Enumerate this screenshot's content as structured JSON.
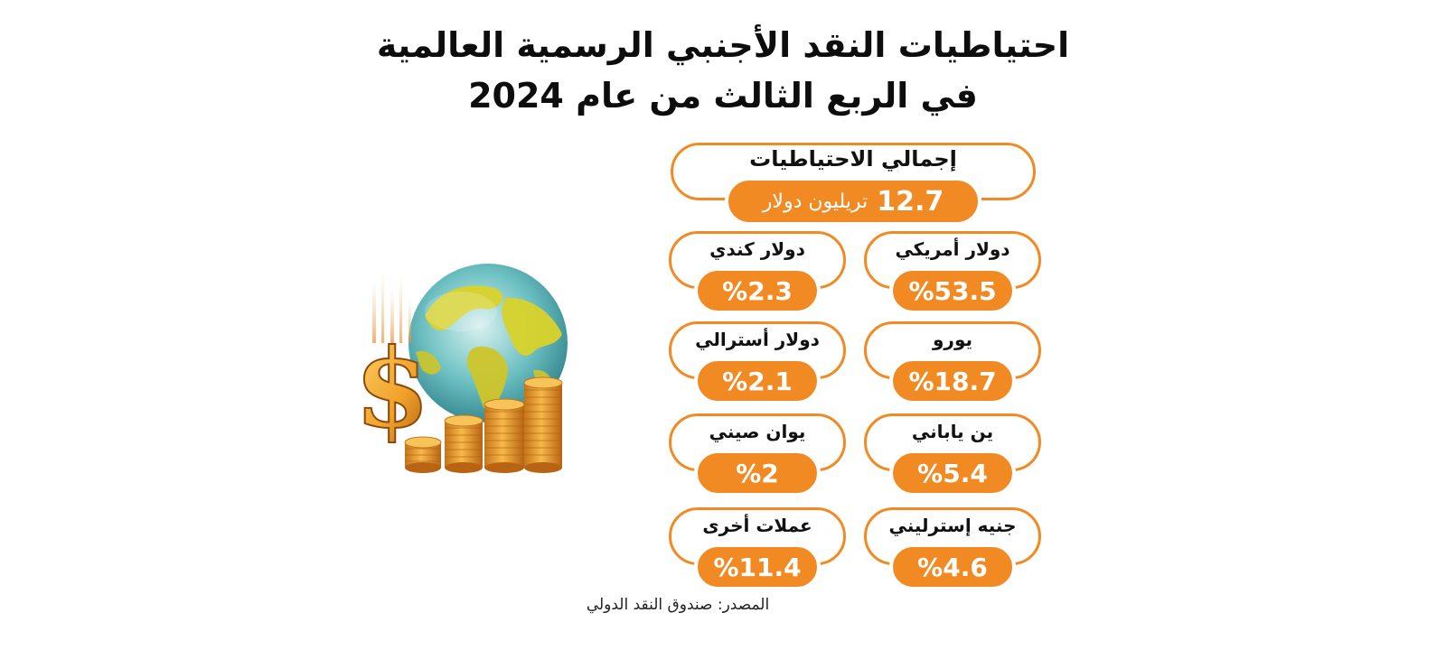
{
  "title": {
    "line1": "احتياطيات النقد الأجنبي الرسمية العالمية",
    "line2": "في الربع الثالث من عام 2024"
  },
  "total": {
    "label": "إجمالي الاحتياطيات",
    "value": "12.7",
    "unit": "تريليون دولار"
  },
  "currencies": [
    {
      "name": "دولار أمريكي",
      "share": "%53.5"
    },
    {
      "name": "دولار كندي",
      "share": "%2.3"
    },
    {
      "name": "يورو",
      "share": "%18.7"
    },
    {
      "name": "دولار أسترالي",
      "share": "%2.1"
    },
    {
      "name": "ين ياباني",
      "share": "%5.4"
    },
    {
      "name": "يوان صيني",
      "share": "%2"
    },
    {
      "name": "جنيه إسترليني",
      "share": "%4.6"
    },
    {
      "name": "عملات أخرى",
      "share": "%11.4"
    }
  ],
  "source": "المصدر: صندوق النقد الدولي",
  "colors": {
    "accent": "#f28a24",
    "coin": "#f0a12a",
    "globe_water": "#3fa3a8",
    "globe_land": "#d9d22a"
  },
  "illustration_icons": [
    "globe-icon",
    "dollar-sign-icon",
    "coin-stack-icon"
  ]
}
